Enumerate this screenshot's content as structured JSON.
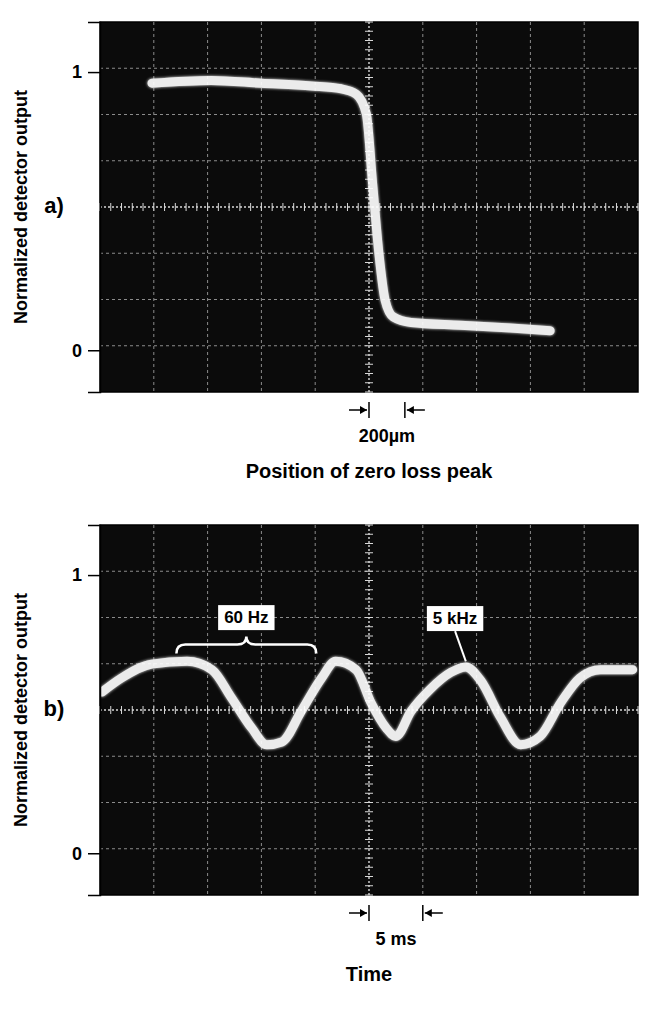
{
  "chart_data": [
    {
      "type": "line",
      "panel": "a)",
      "y_label": "Normalized detector output",
      "x_label": "Position of zero loss peak",
      "xlim": [
        0,
        3000
      ],
      "ylim": [
        -0.15,
        1.18
      ],
      "yticks": [
        0,
        1
      ],
      "grid": true,
      "tick_labels": "y",
      "color": "#ffffff",
      "scale_bar": {
        "x": [
          1500,
          1700
        ],
        "label": "200µm"
      },
      "x": [
        290,
        620,
        900,
        1180,
        1345,
        1430,
        1485,
        1520,
        1555,
        1590,
        1635,
        1735,
        2010,
        2290,
        2510
      ],
      "values": [
        0.96,
        0.97,
        0.96,
        0.95,
        0.94,
        0.92,
        0.85,
        0.6,
        0.35,
        0.18,
        0.12,
        0.1,
        0.09,
        0.08,
        0.07
      ]
    },
    {
      "type": "line",
      "panel": "b)",
      "y_label": "Normalized detector output",
      "x_label": "Time",
      "xlim": [
        0,
        50
      ],
      "ylim": [
        -0.15,
        1.18
      ],
      "yticks": [
        0,
        1
      ],
      "grid": true,
      "tick_labels": "y",
      "color": "#ffffff",
      "scale_bar": {
        "x": [
          25,
          30
        ],
        "label": "5 ms"
      },
      "x": [
        0.2,
        2.0,
        4.8,
        8.1,
        10.4,
        12.2,
        14.1,
        15.5,
        16.9,
        18.7,
        20.6,
        21.9,
        23.8,
        25.2,
        26.6,
        27.5,
        28.9,
        30.7,
        32.6,
        34.0,
        35.4,
        37.2,
        39.1,
        40.9,
        42.8,
        44.6,
        46.5,
        49.5
      ],
      "values": [
        0.58,
        0.63,
        0.68,
        0.69,
        0.66,
        0.56,
        0.45,
        0.39,
        0.4,
        0.51,
        0.63,
        0.69,
        0.66,
        0.54,
        0.45,
        0.42,
        0.51,
        0.59,
        0.65,
        0.67,
        0.62,
        0.49,
        0.39,
        0.42,
        0.54,
        0.63,
        0.66,
        0.66
      ],
      "annotations": [
        {
          "text": "60 Hz",
          "x": [
            7.1,
            20.1
          ],
          "y": 0.75
        },
        {
          "text": "5 kHz",
          "x": 33,
          "y": 0.84,
          "target": [
            34,
            0.69
          ]
        }
      ]
    }
  ]
}
